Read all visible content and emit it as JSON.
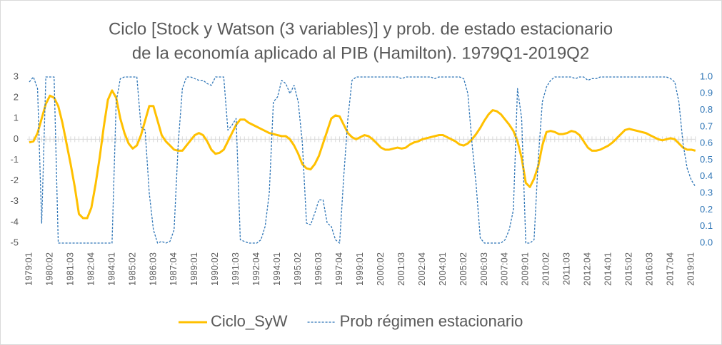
{
  "chart_data": {
    "type": "line",
    "title": [
      "Ciclo [Stock y Watson (3 variables)] y prob. de estado estacionario",
      "de la economía  aplicado al PIB (Hamilton). 1979Q1-2019Q2"
    ],
    "categories": [
      "1979:01",
      null,
      null,
      null,
      null,
      "1980:02",
      null,
      null,
      null,
      null,
      "1981:03",
      null,
      null,
      null,
      null,
      "1982:04",
      null,
      null,
      null,
      null,
      "1984:01",
      null,
      null,
      null,
      null,
      "1985:02",
      null,
      null,
      null,
      null,
      "1986:03",
      null,
      null,
      null,
      null,
      "1987:04",
      null,
      null,
      null,
      null,
      "1989:01",
      null,
      null,
      null,
      null,
      "1990:02",
      null,
      null,
      null,
      null,
      "1991:03",
      null,
      null,
      null,
      null,
      "1992:04",
      null,
      null,
      null,
      null,
      "1994:01",
      null,
      null,
      null,
      null,
      "1995:02",
      null,
      null,
      null,
      null,
      "1996:03",
      null,
      null,
      null,
      null,
      "1997:04",
      null,
      null,
      null,
      null,
      "1999:01",
      null,
      null,
      null,
      null,
      "2000:02",
      null,
      null,
      null,
      null,
      "2001:03",
      null,
      null,
      null,
      null,
      "2002:04",
      null,
      null,
      null,
      null,
      "2004:01",
      null,
      null,
      null,
      null,
      "2005:02",
      null,
      null,
      null,
      null,
      "2006:03",
      null,
      null,
      null,
      null,
      "2007:04",
      null,
      null,
      null,
      null,
      "2009:01",
      null,
      null,
      null,
      null,
      "2010:02",
      null,
      null,
      null,
      null,
      "2011:03",
      null,
      null,
      null,
      null,
      "2012:04",
      null,
      null,
      null,
      null,
      "2014:01",
      null,
      null,
      null,
      null,
      "2015:02",
      null,
      null,
      null,
      null,
      "2016:03",
      null,
      null,
      null,
      null,
      "2017:04",
      null,
      null,
      null,
      null,
      "2019:01",
      null
    ],
    "series": [
      {
        "name": "Ciclo_SyW",
        "color": "#FFC000",
        "dashed": false,
        "values": [
          -0.15,
          -0.1,
          0.3,
          1.0,
          1.7,
          2.1,
          2.0,
          1.6,
          0.8,
          -0.2,
          -1.2,
          -2.3,
          -3.6,
          -3.8,
          -3.8,
          -3.3,
          -2.2,
          -0.9,
          0.6,
          1.9,
          2.35,
          2.0,
          1.0,
          0.3,
          -0.2,
          -0.45,
          -0.3,
          0.2,
          0.9,
          1.6,
          1.6,
          0.9,
          0.2,
          -0.1,
          -0.3,
          -0.5,
          -0.55,
          -0.55,
          -0.3,
          -0.05,
          0.2,
          0.3,
          0.2,
          -0.1,
          -0.5,
          -0.7,
          -0.65,
          -0.5,
          -0.1,
          0.3,
          0.7,
          0.95,
          0.95,
          0.8,
          0.7,
          0.6,
          0.5,
          0.4,
          0.3,
          0.25,
          0.2,
          0.15,
          0.15,
          0.0,
          -0.3,
          -0.7,
          -1.2,
          -1.4,
          -1.45,
          -1.2,
          -0.8,
          -0.2,
          0.4,
          1.0,
          1.15,
          1.1,
          0.7,
          0.3,
          0.1,
          0.0,
          0.1,
          0.2,
          0.15,
          0.0,
          -0.2,
          -0.4,
          -0.5,
          -0.5,
          -0.45,
          -0.4,
          -0.45,
          -0.4,
          -0.25,
          -0.15,
          -0.1,
          0.0,
          0.05,
          0.1,
          0.15,
          0.2,
          0.2,
          0.1,
          0.0,
          -0.1,
          -0.25,
          -0.3,
          -0.2,
          0.0,
          0.25,
          0.55,
          0.9,
          1.2,
          1.4,
          1.35,
          1.2,
          0.95,
          0.7,
          0.4,
          -0.1,
          -0.9,
          -2.1,
          -2.3,
          -1.9,
          -1.3,
          -0.3,
          0.35,
          0.4,
          0.35,
          0.25,
          0.25,
          0.3,
          0.4,
          0.35,
          0.2,
          -0.1,
          -0.4,
          -0.55,
          -0.55,
          -0.5,
          -0.4,
          -0.3,
          -0.15,
          0.05,
          0.25,
          0.45,
          0.5,
          0.45,
          0.4,
          0.35,
          0.3,
          0.2,
          0.1,
          0.0,
          -0.05,
          0.0,
          0.05,
          0.0,
          -0.2,
          -0.4,
          -0.5,
          -0.5,
          -0.55
        ]
      },
      {
        "name": "Prob régimen estacionario",
        "color": "#2E75B6",
        "dashed": true,
        "axis": "y2",
        "values": [
          0.97,
          1.0,
          0.93,
          0.12,
          1.0,
          1.0,
          1.0,
          0.0,
          0.0,
          0.0,
          0.0,
          0.0,
          0.0,
          0.0,
          0.0,
          0.0,
          0.0,
          0.0,
          0.0,
          0.0,
          0.0,
          0.85,
          0.99,
          1.0,
          1.0,
          1.0,
          1.0,
          0.7,
          0.68,
          0.3,
          0.08,
          0.0,
          0.01,
          0.0,
          0.01,
          0.08,
          0.6,
          0.93,
          1.0,
          1.0,
          0.99,
          0.98,
          0.98,
          0.96,
          0.95,
          1.0,
          1.0,
          1.0,
          0.68,
          0.71,
          0.75,
          0.02,
          0.01,
          0.0,
          0.0,
          0.0,
          0.02,
          0.1,
          0.3,
          0.85,
          0.88,
          0.98,
          0.96,
          0.9,
          0.95,
          0.85,
          0.6,
          0.12,
          0.11,
          0.18,
          0.26,
          0.26,
          0.12,
          0.1,
          0.02,
          0.0,
          0.4,
          0.75,
          0.98,
          1.0,
          1.0,
          1.0,
          1.0,
          1.0,
          1.0,
          1.0,
          1.0,
          1.0,
          1.0,
          1.0,
          0.99,
          1.0,
          1.0,
          1.0,
          1.0,
          1.0,
          1.0,
          1.0,
          0.99,
          1.0,
          1.0,
          1.0,
          1.0,
          1.0,
          1.0,
          0.99,
          0.9,
          0.6,
          0.35,
          0.03,
          0.0,
          0.0,
          0.0,
          0.0,
          0.0,
          0.02,
          0.08,
          0.2,
          0.93,
          0.75,
          0.0,
          0.0,
          0.02,
          0.5,
          0.85,
          0.94,
          0.98,
          1.0,
          1.0,
          1.0,
          1.0,
          1.0,
          0.99,
          1.0,
          1.0,
          0.98,
          0.99,
          0.99,
          1.0,
          1.0,
          1.0,
          1.0,
          1.0,
          1.0,
          1.0,
          1.0,
          1.0,
          1.0,
          1.0,
          1.0,
          1.0,
          1.0,
          1.0,
          1.0,
          1.0,
          0.99,
          0.97,
          0.85,
          0.6,
          0.45,
          0.38,
          0.34
        ]
      }
    ],
    "ylim": [
      -5,
      3
    ],
    "yticks": [
      -5,
      -4,
      -3,
      -2,
      -1,
      0,
      1,
      2,
      3
    ],
    "y2lim": [
      0,
      1
    ],
    "y2ticks": [
      {
        "value": 0,
        "label": "0.0"
      },
      0.1,
      0.2,
      0.3,
      0.4,
      0.5,
      0.6,
      0.7,
      0.8,
      0.9,
      {
        "value": 1,
        "label": "1.0"
      }
    ],
    "grid": false,
    "legend": "bottom"
  }
}
